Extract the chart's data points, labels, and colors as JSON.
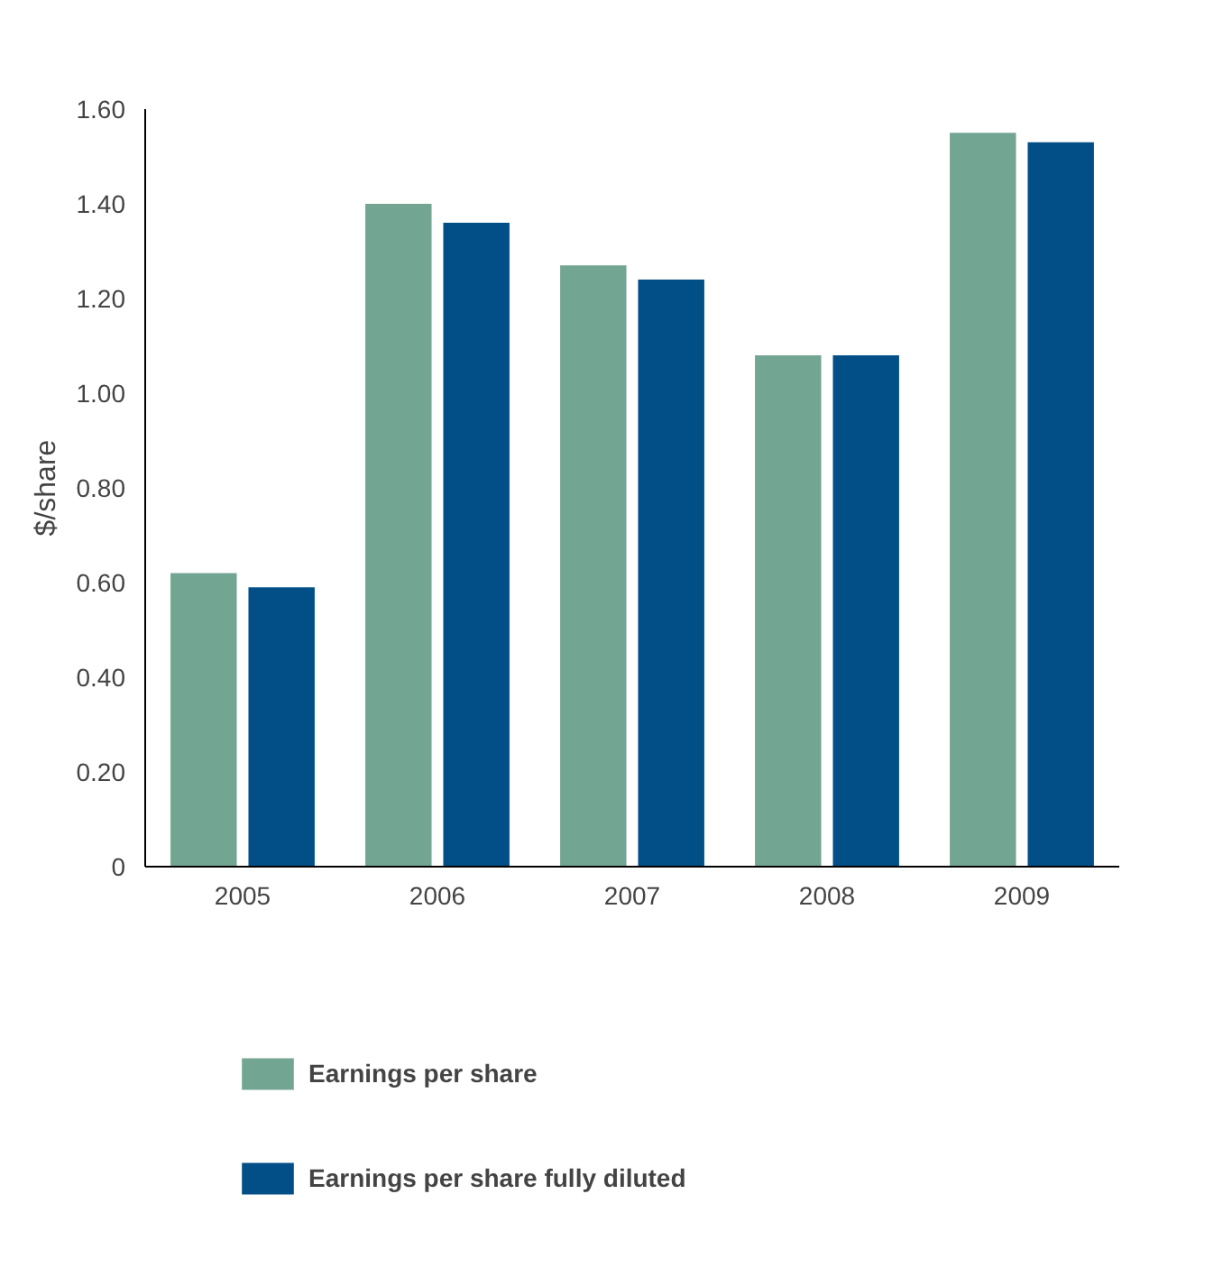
{
  "chart_data": {
    "type": "bar",
    "ylabel": "$/share",
    "categories": [
      "2005",
      "2006",
      "2007",
      "2008",
      "2009"
    ],
    "series": [
      {
        "name": "Earnings per share",
        "color": "#72a592",
        "values": [
          0.62,
          1.4,
          1.27,
          1.08,
          1.55
        ]
      },
      {
        "name": "Earnings per share fully diluted",
        "color": "#024f88",
        "values": [
          0.59,
          1.36,
          1.24,
          1.08,
          1.53
        ]
      }
    ],
    "ylim": [
      0,
      1.6
    ],
    "yticks": [
      {
        "value": 0,
        "label": "0"
      },
      {
        "value": 0.2,
        "label": "0.20"
      },
      {
        "value": 0.4,
        "label": "0.40"
      },
      {
        "value": 0.6,
        "label": "0.60"
      },
      {
        "value": 0.8,
        "label": "0.80"
      },
      {
        "value": 1.0,
        "label": "1.00"
      },
      {
        "value": 1.2,
        "label": "1.20"
      },
      {
        "value": 1.4,
        "label": "1.40"
      },
      {
        "value": 1.6,
        "label": "1.60"
      }
    ],
    "grid": false,
    "legend": "bottom"
  }
}
